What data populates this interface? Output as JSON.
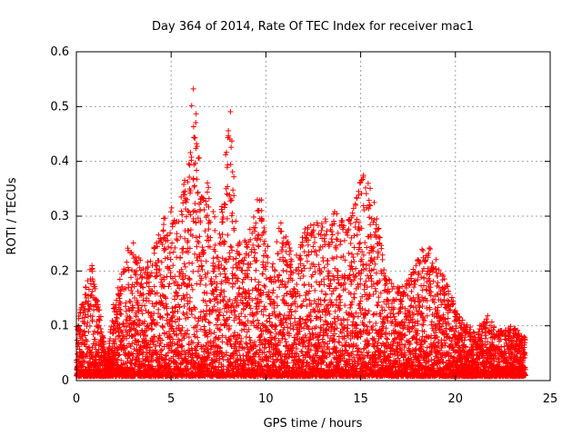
{
  "chart_data": {
    "type": "scatter",
    "title": "Day 364 of 2014, Rate Of TEC Index for receiver mac1",
    "xlabel": "GPS time / hours",
    "ylabel": "ROTI / TECUs",
    "xlim": [
      0,
      25
    ],
    "ylim": [
      0,
      0.6
    ],
    "x_ticks": [
      "0",
      "5",
      "10",
      "15",
      "20",
      "25"
    ],
    "y_ticks": [
      "0",
      "0.1",
      "0.2",
      "0.3",
      "0.4",
      "0.5",
      "0.6"
    ],
    "grid": true,
    "legend": "none",
    "marker": "+",
    "color": "#ff0000",
    "x_range": [
      0,
      23.7
    ],
    "envelope": [
      [
        0.0,
        0.1
      ],
      [
        0.5,
        0.18
      ],
      [
        0.8,
        0.22
      ],
      [
        1.2,
        0.14
      ],
      [
        1.6,
        0.04
      ],
      [
        2.0,
        0.15
      ],
      [
        2.5,
        0.21
      ],
      [
        2.8,
        0.27
      ],
      [
        3.5,
        0.21
      ],
      [
        4.2,
        0.25
      ],
      [
        4.8,
        0.33
      ],
      [
        5.3,
        0.3
      ],
      [
        5.8,
        0.38
      ],
      [
        6.2,
        0.56
      ],
      [
        6.5,
        0.4
      ],
      [
        7.0,
        0.36
      ],
      [
        7.5,
        0.26
      ],
      [
        8.1,
        0.51
      ],
      [
        8.5,
        0.25
      ],
      [
        9.0,
        0.26
      ],
      [
        9.7,
        0.35
      ],
      [
        10.3,
        0.2
      ],
      [
        10.8,
        0.3
      ],
      [
        11.5,
        0.22
      ],
      [
        12.3,
        0.3
      ],
      [
        13.0,
        0.29
      ],
      [
        13.7,
        0.32
      ],
      [
        14.2,
        0.28
      ],
      [
        14.7,
        0.33
      ],
      [
        15.2,
        0.39
      ],
      [
        15.7,
        0.34
      ],
      [
        16.3,
        0.2
      ],
      [
        17.0,
        0.17
      ],
      [
        17.6,
        0.19
      ],
      [
        18.2,
        0.24
      ],
      [
        18.7,
        0.25
      ],
      [
        19.5,
        0.18
      ],
      [
        20.2,
        0.12
      ],
      [
        21.0,
        0.09
      ],
      [
        21.7,
        0.12
      ],
      [
        22.3,
        0.09
      ],
      [
        23.0,
        0.1
      ],
      [
        23.7,
        0.08
      ]
    ],
    "baseline": 0.02
  }
}
